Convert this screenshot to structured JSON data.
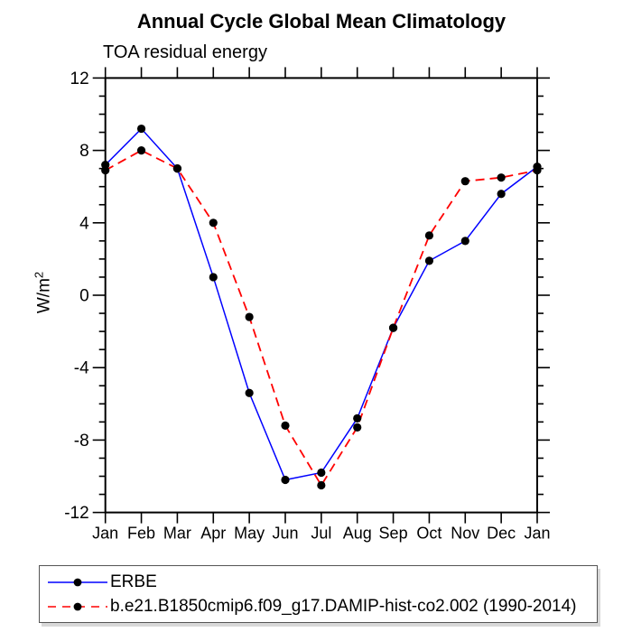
{
  "chart": {
    "title": "Annual Cycle Global Mean Climatology",
    "subtitle": "TOA residual energy",
    "ylabel_base": "W/m",
    "ylabel_sup": "2"
  },
  "legend": {
    "entries": [
      {
        "label": "ERBE",
        "color": "#0000ff",
        "style": "solid"
      },
      {
        "label": "b.e21.B1850cmip6.f09_g17.DAMIP-hist-co2.002 (1990-2014)",
        "color": "#ff0000",
        "style": "dashed"
      }
    ]
  },
  "chart_data": {
    "type": "line",
    "title": "Annual Cycle Global Mean Climatology",
    "subtitle": "TOA residual energy",
    "ylabel": "W/m²",
    "categories": [
      "Jan",
      "Feb",
      "Mar",
      "Apr",
      "May",
      "Jun",
      "Jul",
      "Aug",
      "Sep",
      "Oct",
      "Nov",
      "Dec",
      "Jan"
    ],
    "series": [
      {
        "name": "ERBE",
        "color": "#0000ff",
        "dash": "solid",
        "marker": "black-dot",
        "values": [
          7.2,
          9.2,
          7.0,
          1.0,
          -5.4,
          -10.2,
          -9.8,
          -6.8,
          -1.8,
          1.9,
          3.0,
          5.6,
          7.1
        ]
      },
      {
        "name": "b.e21.B1850cmip6.f09_g17.DAMIP-hist-co2.002 (1990-2014)",
        "color": "#ff0000",
        "dash": "dashed",
        "marker": "black-dot",
        "values": [
          6.9,
          8.0,
          7.0,
          4.0,
          -1.2,
          -7.2,
          -10.5,
          -7.3,
          -1.8,
          3.3,
          6.3,
          6.5,
          6.9
        ]
      }
    ],
    "ylim": [
      -12,
      12
    ],
    "yticks": {
      "major": [
        12,
        8,
        4,
        0,
        -4,
        -8,
        -12
      ],
      "minor_step": 1
    },
    "grid": false,
    "legend_position": "bottom-left",
    "marker_color": "#000000",
    "axis_color": "#000000"
  }
}
